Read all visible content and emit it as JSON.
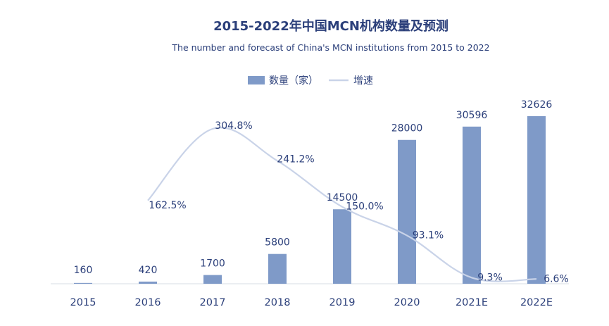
{
  "chart_data": {
    "type": "bar",
    "title": "2015-2022年中国MCN机构数量及预测",
    "subtitle": "The number and forecast of China's MCN institutions from 2015 to 2022",
    "categories": [
      "2015",
      "2016",
      "2017",
      "2018",
      "2019",
      "2020",
      "2021E",
      "2022E"
    ],
    "series": [
      {
        "name": "数量（家）",
        "kind": "bar",
        "color": "#7f9ac8",
        "values": [
          160,
          420,
          1700,
          5800,
          14500,
          28000,
          30596,
          32626
        ],
        "labels": [
          "160",
          "420",
          "1700",
          "5800",
          "14500",
          "28000",
          "30596",
          "32626"
        ]
      },
      {
        "name": "增速",
        "kind": "line",
        "color": "#c9d3e8",
        "values": [
          null,
          162.5,
          304.8,
          241.2,
          150.0,
          93.1,
          9.3,
          6.6
        ],
        "labels": [
          "",
          "162.5%",
          "304.8%",
          "241.2%",
          "150.0%",
          "93.1%",
          "9.3%",
          "6.6%"
        ]
      }
    ],
    "legend_position": "top-center",
    "grid": false
  }
}
